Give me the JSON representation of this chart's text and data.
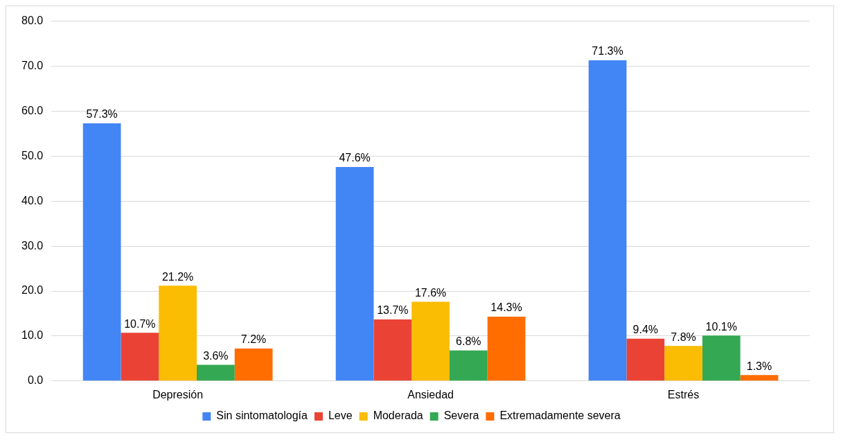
{
  "chart_data": {
    "type": "bar",
    "categories": [
      "Depresión",
      "Ansiedad",
      "Estrés"
    ],
    "series": [
      {
        "name": "Sin sintomatología",
        "color": "#4285f4",
        "values": [
          57.3,
          47.6,
          71.3
        ],
        "value_labels": [
          "57.3%",
          "47.6%",
          "71.3%"
        ]
      },
      {
        "name": "Leve",
        "color": "#ea4335",
        "values": [
          10.7,
          13.7,
          9.4
        ],
        "value_labels": [
          "10.7%",
          "13.7%",
          "9.4%"
        ]
      },
      {
        "name": "Moderada",
        "color": "#fbbc04",
        "values": [
          21.2,
          17.6,
          7.8
        ],
        "value_labels": [
          "21.2%",
          "17.6%",
          "7.8%"
        ]
      },
      {
        "name": "Severa",
        "color": "#34a853",
        "values": [
          3.6,
          6.8,
          10.1
        ],
        "value_labels": [
          "3.6%",
          "6.8%",
          "10.1%"
        ]
      },
      {
        "name": "Extremadamente severa",
        "color": "#ff6d01",
        "values": [
          7.2,
          14.3,
          1.3
        ],
        "value_labels": [
          "7.2%",
          "14.3%",
          "1.3%"
        ]
      }
    ],
    "ylim": [
      0,
      80
    ],
    "yticks": [
      {
        "value": 0,
        "label": "0.0"
      },
      {
        "value": 10,
        "label": "10.0"
      },
      {
        "value": 20,
        "label": "20.0"
      },
      {
        "value": 30,
        "label": "30.0"
      },
      {
        "value": 40,
        "label": "40.0"
      },
      {
        "value": 50,
        "label": "50.0"
      },
      {
        "value": 60,
        "label": "60.0"
      },
      {
        "value": 70,
        "label": "70.0"
      },
      {
        "value": 80,
        "label": "80.0"
      }
    ],
    "grid": "y",
    "legend": "bottom"
  }
}
